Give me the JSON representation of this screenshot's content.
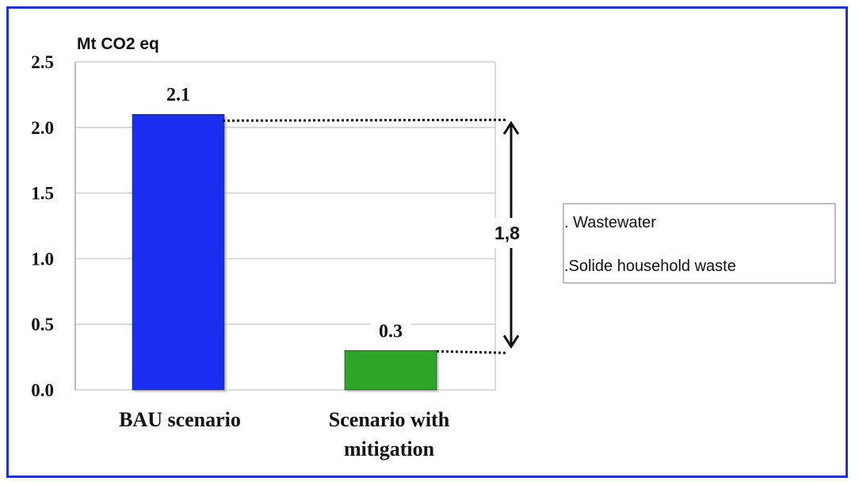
{
  "chart_data": {
    "type": "bar",
    "unit_label": "Mt CO2 eq",
    "categories": [
      "BAU scenario",
      "Scenario with mitigation"
    ],
    "category_lines": [
      [
        "BAU scenario"
      ],
      [
        "Scenario with",
        "mitigation"
      ]
    ],
    "values": [
      2.1,
      0.3
    ],
    "value_labels": [
      "2.1",
      "0.3"
    ],
    "bar_colors": [
      "#1a2ef0",
      "#2ea62a"
    ],
    "ylim": [
      0,
      2.5
    ],
    "yticks": [
      0,
      0.5,
      1,
      1.5,
      2,
      2.5
    ],
    "ytick_labels": [
      "0.0",
      "0.5",
      "1.0",
      "1.5",
      "2.0",
      "2.5"
    ],
    "grid": true,
    "difference_annotation": "1,8",
    "legend": {
      "placement": "right",
      "entries": [
        ". Wastewater",
        ". Solide household waste"
      ]
    }
  },
  "colors": {
    "frame": "#1d33d9",
    "grid": "#c8c8c8",
    "axis": "#999999"
  }
}
